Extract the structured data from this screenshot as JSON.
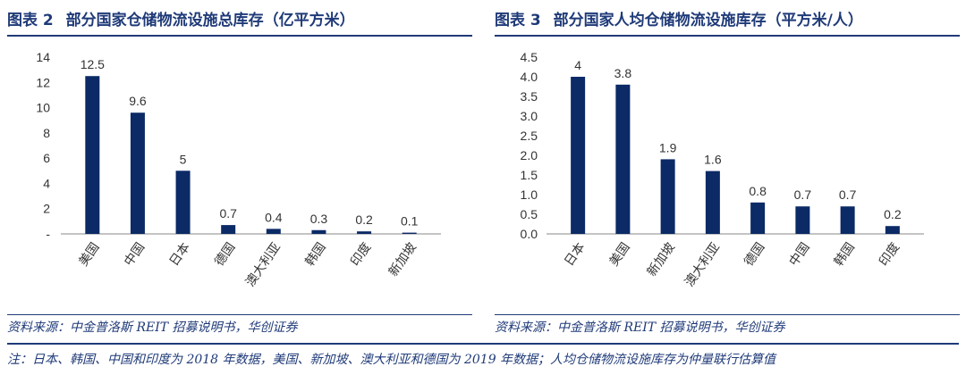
{
  "figures": [
    {
      "label": "图表 2",
      "title": "部分国家仓储物流设施总库存（亿平方米）",
      "source": "资料来源：中金普洛斯 REIT 招募说明书，华创证券",
      "chart_data": {
        "type": "bar",
        "categories": [
          "美国",
          "中国",
          "日本",
          "德国",
          "澳大利亚",
          "韩国",
          "印度",
          "新加坡"
        ],
        "values": [
          12.5,
          9.6,
          5,
          0.7,
          0.4,
          0.3,
          0.2,
          0.1
        ],
        "data_labels": [
          "12.5",
          "9.6",
          "5",
          "0.7",
          "0.4",
          "0.3",
          "0.2",
          "0.1"
        ],
        "yticks": [
          "-",
          "2",
          "4",
          "6",
          "8",
          "10",
          "12",
          "14"
        ],
        "ylim": [
          0,
          14
        ],
        "title": "部分国家仓储物流设施总库存（亿平方米）",
        "grid": false
      }
    },
    {
      "label": "图表 3",
      "title": "部分国家人均仓储物流设施库存（平方米/人）",
      "source": "资料来源：中金普洛斯 REIT 招募说明书，华创证券",
      "chart_data": {
        "type": "bar",
        "categories": [
          "日本",
          "美国",
          "新加坡",
          "澳大利亚",
          "德国",
          "中国",
          "韩国",
          "印度"
        ],
        "values": [
          4,
          3.8,
          1.9,
          1.6,
          0.8,
          0.7,
          0.7,
          0.2
        ],
        "data_labels": [
          "4",
          "3.8",
          "1.9",
          "1.6",
          "0.8",
          "0.7",
          "0.7",
          "0.2"
        ],
        "yticks": [
          "0.0",
          "0.5",
          "1.0",
          "1.5",
          "2.0",
          "2.5",
          "3.0",
          "3.5",
          "4.0",
          "4.5"
        ],
        "ylim": [
          0,
          4.5
        ],
        "title": "部分国家人均仓储物流设施库存（平方米/人）",
        "grid": false
      }
    }
  ],
  "footnote": "注：日本、韩国、中国和印度为 2018 年数据，美国、新加坡、澳大利亚和德国为 2019 年数据；人均仓储物流设施库存为仲量联行估算值",
  "colors": {
    "bar": "#0b2a66",
    "accent": "#1f3a78"
  }
}
